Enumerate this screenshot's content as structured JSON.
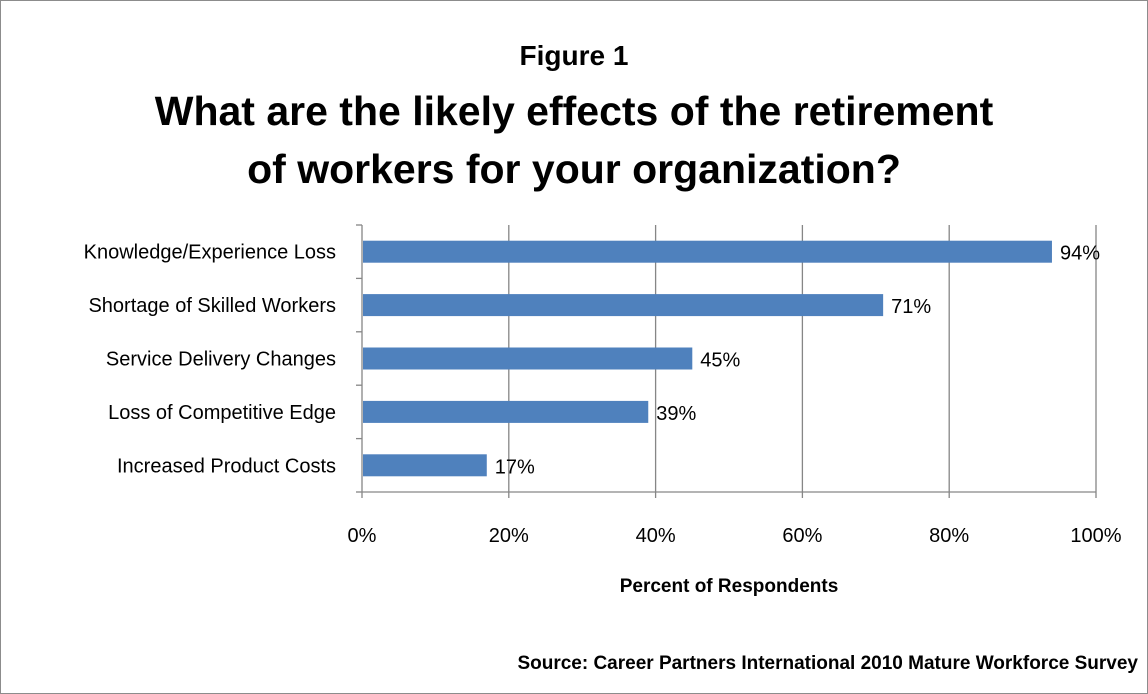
{
  "figure_label": "Figure 1",
  "title_line1": "What are the likely effects of the retirement",
  "title_line2": "of workers for your organization?",
  "source": "Source:  Career Partners International 2010 Mature Workforce Survey",
  "chart_data": {
    "type": "bar",
    "orientation": "horizontal",
    "title": "What are the likely effects of the retirement of workers for your organization?",
    "xlabel": "Percent of Respondents",
    "ylabel": "",
    "categories": [
      "Knowledge/Experience Loss",
      "Shortage of Skilled Workers",
      "Service Delivery Changes",
      "Loss of Competitive Edge",
      "Increased Product Costs"
    ],
    "values": [
      94,
      71,
      45,
      39,
      17
    ],
    "data_labels": [
      "94%",
      "71%",
      "45%",
      "39%",
      "17%"
    ],
    "xlim": [
      0,
      100
    ],
    "xticks": [
      "0%",
      "20%",
      "40%",
      "60%",
      "80%",
      "100%"
    ],
    "grid": "vertical",
    "bar_color": "#4f81bd",
    "legend": "none"
  }
}
